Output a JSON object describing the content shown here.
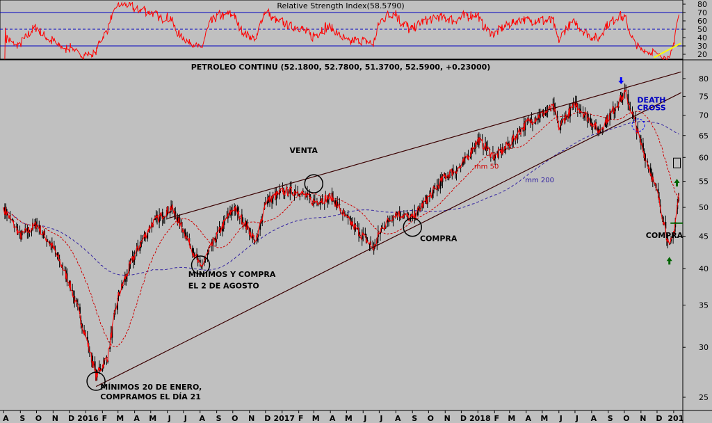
{
  "chart_data": {
    "type": "candlestick",
    "title": "PETROLEO CONTINU (52.1800, 52.7800, 51.3700, 52.5900, +0.23000)",
    "ohlc_last": {
      "open": 52.18,
      "high": 52.78,
      "low": 51.37,
      "close": 52.59,
      "change": 0.23
    },
    "rsi": {
      "title": "Relative Strength Index(58.5790)",
      "value": 58.579,
      "levels": [
        30,
        50,
        70
      ],
      "y_ticks": [
        20,
        30,
        40,
        50,
        60,
        70,
        80
      ]
    },
    "price_axis": {
      "scale": "log",
      "ticks": [
        25,
        30,
        35,
        40,
        45,
        50,
        55,
        60,
        65,
        70,
        75,
        80
      ]
    },
    "x_labels": [
      "A",
      "S",
      "O",
      "N",
      "D",
      "2016",
      "F",
      "M",
      "A",
      "M",
      "J",
      "J",
      "A",
      "S",
      "O",
      "N",
      "D",
      "2017",
      "F",
      "M",
      "A",
      "M",
      "J",
      "J",
      "A",
      "S",
      "O",
      "N",
      "D",
      "2018",
      "F",
      "M",
      "A",
      "M",
      "J",
      "J",
      "A",
      "S",
      "O",
      "N",
      "D",
      "201"
    ],
    "price_path": [
      [
        "2015-07-31",
        50
      ],
      [
        "2015-09-01",
        45
      ],
      [
        "2015-10-01",
        47
      ],
      [
        "2015-11-02",
        43
      ],
      [
        "2015-12-01",
        38
      ],
      [
        "2016-01-20",
        27
      ],
      [
        "2016-02-11",
        29
      ],
      [
        "2016-03-01",
        36
      ],
      [
        "2016-04-01",
        42
      ],
      [
        "2016-05-02",
        47
      ],
      [
        "2016-06-08",
        50
      ],
      [
        "2016-07-01",
        46
      ],
      [
        "2016-08-02",
        40
      ],
      [
        "2016-09-01",
        45
      ],
      [
        "2016-10-03",
        50
      ],
      [
        "2016-11-14",
        44
      ],
      [
        "2016-12-01",
        51
      ],
      [
        "2017-01-02",
        53
      ],
      [
        "2017-02-01",
        53
      ],
      [
        "2017-03-01",
        51
      ],
      [
        "2017-04-03",
        52
      ],
      [
        "2017-05-01",
        48
      ],
      [
        "2017-06-21",
        43
      ],
      [
        "2017-07-03",
        46
      ],
      [
        "2017-08-01",
        49
      ],
      [
        "2017-09-01",
        48
      ],
      [
        "2017-10-02",
        52
      ],
      [
        "2017-11-01",
        56
      ],
      [
        "2017-12-01",
        58
      ],
      [
        "2018-01-02",
        64
      ],
      [
        "2018-02-01",
        60
      ],
      [
        "2018-03-01",
        63
      ],
      [
        "2018-04-02",
        68
      ],
      [
        "2018-05-22",
        72
      ],
      [
        "2018-06-01",
        67
      ],
      [
        "2018-07-02",
        73
      ],
      [
        "2018-08-15",
        66
      ],
      [
        "2018-09-04",
        70
      ],
      [
        "2018-10-03",
        76
      ],
      [
        "2018-11-01",
        63
      ],
      [
        "2018-12-03",
        52
      ],
      [
        "2018-12-24",
        43
      ],
      [
        "2019-01-02",
        46
      ],
      [
        "2019-01-11",
        52.59
      ]
    ],
    "moving_averages": [
      {
        "name": "mm 50",
        "color": "#d00000"
      },
      {
        "name": "mm 200",
        "color": "#3020a0"
      }
    ],
    "trendlines": [
      {
        "from": [
          "2016-01-20",
          26
        ],
        "to": [
          "2019-01-15",
          76
        ]
      },
      {
        "from": [
          "2016-06-01",
          48
        ],
        "to": [
          "2019-01-15",
          82
        ]
      }
    ],
    "annotations": [
      {
        "text": "VENTA",
        "date": "2017-01-15",
        "price": 61
      },
      {
        "text": "MÍNIMOS Y COMPRA",
        "date": "2016-07-10",
        "price": 38.8
      },
      {
        "text": "EL 2 DE AGOSTO",
        "date": "2016-07-10",
        "price": 37.2
      },
      {
        "text": "MÍNIMOS 20 DE ENERO,",
        "date": "2016-01-28",
        "price": 25.7
      },
      {
        "text": "COMPRAMOS EL DÍA 21",
        "date": "2016-01-28",
        "price": 24.8
      },
      {
        "text": "COMPRA",
        "date": "2017-09-15",
        "price": 44.2
      },
      {
        "text": "COMPRA",
        "date": "2018-11-10",
        "price": 44.7
      },
      {
        "text": "DEATH",
        "date": "2018-10-25",
        "price": 73.3
      },
      {
        "text": "CROSS",
        "date": "2018-10-25",
        "price": 71.3
      },
      {
        "text": "mm 50",
        "date": "2017-12-25",
        "price": 57.6
      },
      {
        "text": "mm 200",
        "date": "2018-03-30",
        "price": 54.8
      }
    ],
    "markers": [
      {
        "type": "circle",
        "date": "2016-01-20",
        "price": 26.5
      },
      {
        "type": "circle",
        "date": "2016-08-02",
        "price": 40.5
      },
      {
        "type": "circle",
        "date": "2017-03-01",
        "price": 54.5
      },
      {
        "type": "circle",
        "date": "2017-09-01",
        "price": 46.5
      },
      {
        "type": "circle",
        "date": "2018-10-27",
        "price": 67.5
      },
      {
        "type": "arrow-down",
        "date": "2018-09-25",
        "price": 79
      },
      {
        "type": "arrow-up",
        "date": "2018-12-24",
        "price": 41.2
      },
      {
        "type": "arrow-up",
        "date": "2019-01-07",
        "price": 54.8
      },
      {
        "type": "square",
        "date": "2019-01-07",
        "price": 58.8
      }
    ],
    "colors": {
      "background": "#c0c0c0",
      "candles": "#000000",
      "price_line": "#ff0000",
      "rsi_line": "#ff0000",
      "rsi_levels": "#0000c0",
      "rsi_trend": "#ffff00"
    }
  }
}
